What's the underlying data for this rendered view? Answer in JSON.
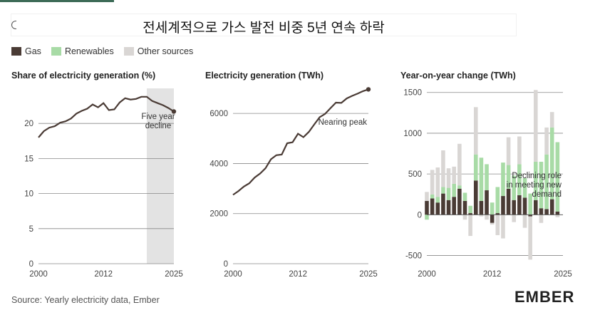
{
  "title": "전세계적으로 가스 발전 비중 5년 연속 하락",
  "legend": [
    {
      "label": "Gas",
      "color": "#4a3b35"
    },
    {
      "label": "Renewables",
      "color": "#a8dba6"
    },
    {
      "label": "Other sources",
      "color": "#d9d6d4"
    }
  ],
  "source": "Source: Yearly electricity data, Ember",
  "logo": "EMBER",
  "chart_data": [
    {
      "type": "line",
      "title": "Share of electricity generation (%)",
      "x": [
        2000,
        2001,
        2002,
        2003,
        2004,
        2005,
        2006,
        2007,
        2008,
        2009,
        2010,
        2011,
        2012,
        2013,
        2014,
        2015,
        2016,
        2017,
        2018,
        2019,
        2020,
        2021,
        2022,
        2023,
        2024,
        2025
      ],
      "series": [
        {
          "values": [
            18.0,
            18.9,
            19.4,
            19.6,
            20.1,
            20.3,
            20.7,
            21.4,
            21.8,
            22.1,
            22.7,
            22.3,
            22.9,
            21.9,
            22.0,
            23.0,
            23.6,
            23.4,
            23.5,
            23.8,
            23.8,
            23.2,
            22.9,
            22.6,
            22.2,
            21.7
          ]
        }
      ],
      "xticks": [
        2000,
        2012,
        2025
      ],
      "yticks": [
        0,
        5,
        10,
        15,
        20
      ],
      "xlim": [
        2000,
        2025
      ],
      "ylim": [
        0,
        25
      ],
      "shaded_region": [
        2020,
        2025
      ],
      "annotation": "Five year decline",
      "color": "#4a3b35"
    },
    {
      "type": "line",
      "title": "Electricity generation (TWh)",
      "x": [
        2000,
        2001,
        2002,
        2003,
        2004,
        2005,
        2006,
        2007,
        2008,
        2009,
        2010,
        2011,
        2012,
        2013,
        2014,
        2015,
        2016,
        2017,
        2018,
        2019,
        2020,
        2021,
        2022,
        2023,
        2024,
        2025
      ],
      "series": [
        {
          "values": [
            2750,
            2900,
            3080,
            3210,
            3440,
            3600,
            3810,
            4170,
            4330,
            4360,
            4810,
            4850,
            5190,
            5050,
            5260,
            5560,
            5850,
            5980,
            6210,
            6430,
            6420,
            6600,
            6700,
            6790,
            6890,
            6960
          ]
        }
      ],
      "xticks": [
        2000,
        2012,
        2025
      ],
      "yticks": [
        0,
        2000,
        4000,
        6000
      ],
      "xlim": [
        2000,
        2025
      ],
      "ylim": [
        0,
        7000
      ],
      "annotation": "Nearing peak",
      "color": "#4a3b35"
    },
    {
      "type": "bar",
      "stacked": true,
      "title": "Year-on-year change (TWh)",
      "x": [
        2000,
        2001,
        2002,
        2003,
        2004,
        2005,
        2006,
        2007,
        2008,
        2009,
        2010,
        2011,
        2012,
        2013,
        2014,
        2015,
        2016,
        2017,
        2018,
        2019,
        2020,
        2021,
        2022,
        2023,
        2024,
        2025
      ],
      "series": [
        {
          "name": "Gas",
          "color": "#4a3b35",
          "values": [
            170,
            200,
            150,
            260,
            180,
            220,
            320,
            170,
            20,
            420,
            170,
            300,
            -100,
            20,
            230,
            320,
            180,
            240,
            210,
            -20,
            180,
            80,
            70,
            190,
            40,
            0
          ]
        },
        {
          "name": "Renewables",
          "color": "#a8dba6",
          "values": [
            -60,
            50,
            70,
            80,
            150,
            160,
            40,
            100,
            90,
            320,
            530,
            320,
            150,
            320,
            410,
            290,
            300,
            380,
            240,
            260,
            470,
            570,
            670,
            880,
            850,
            0
          ]
        },
        {
          "name": "Other sources",
          "color": "#d9d6d4",
          "values": [
            110,
            300,
            360,
            450,
            240,
            210,
            510,
            -60,
            -260,
            580,
            -20,
            -60,
            -20,
            -250,
            -290,
            340,
            -90,
            340,
            -160,
            -530,
            880,
            -100,
            330,
            190,
            -30,
            0
          ]
        }
      ],
      "xticks": [
        2000,
        2012,
        2025
      ],
      "yticks": [
        -500,
        0,
        500,
        1000,
        1500
      ],
      "xlim": [
        2000,
        2025
      ],
      "ylim": [
        -600,
        1550
      ],
      "annotation": "Declining role in meeting new demand"
    }
  ]
}
